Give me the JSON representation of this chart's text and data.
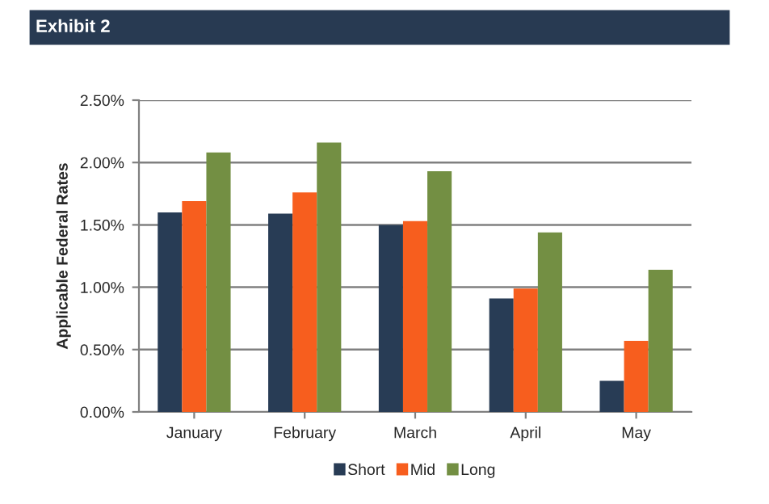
{
  "chart_data": {
    "type": "bar",
    "title": "Exhibit 2",
    "ylabel": "Applicable Federal Rates",
    "categories": [
      "January",
      "February",
      "March",
      "April",
      "May"
    ],
    "series": [
      {
        "name": "Short",
        "color": "#283c55",
        "values": [
          1.6,
          1.59,
          1.5,
          0.91,
          0.25
        ]
      },
      {
        "name": "Mid",
        "color": "#f75e1e",
        "values": [
          1.69,
          1.76,
          1.53,
          0.99,
          0.57
        ]
      },
      {
        "name": "Long",
        "color": "#738f43",
        "values": [
          2.08,
          2.16,
          1.93,
          1.44,
          1.14
        ]
      }
    ],
    "ylim": [
      0,
      2.5
    ],
    "yticks": [
      {
        "value": 0,
        "label": "0.00%"
      },
      {
        "value": 0.5,
        "label": "0.50%"
      },
      {
        "value": 1.0,
        "label": "1.00%"
      },
      {
        "value": 1.5,
        "label": "1.50%"
      },
      {
        "value": 2.0,
        "label": "2.00%"
      },
      {
        "value": 2.5,
        "label": "2.50%"
      }
    ],
    "grid": "y",
    "legend": "bottom"
  }
}
